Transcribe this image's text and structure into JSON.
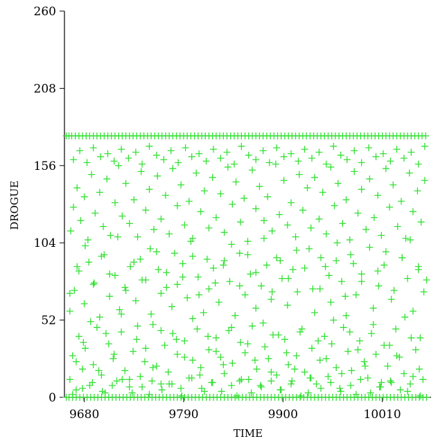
{
  "chart_data": {
    "type": "scatter",
    "title": "",
    "xlabel": "TIME",
    "ylabel": "DROGUE",
    "xlim": [
      9658,
      10064
    ],
    "ylim": [
      0,
      260
    ],
    "x_ticks": [
      9680,
      9790,
      9900,
      10010
    ],
    "x_tick_labels": [
      "9680",
      "9790",
      "9900",
      "10010"
    ],
    "y_ticks": [
      0,
      52,
      104,
      156,
      208,
      260
    ],
    "y_tick_labels": [
      "0",
      "52",
      "104",
      "156",
      208,
      "260"
    ],
    "marker": "plus",
    "grid": false,
    "colors": {
      "marker": "#33e033",
      "axis": "#000000"
    },
    "series": [
      {
        "x": [
          9664,
          9667,
          9671,
          9674,
          9678,
          9681,
          9686,
          9690,
          9694,
          9699,
          9703,
          9707,
          9712,
          9716,
          9721,
          9725,
          9730,
          9734,
          9738,
          9742,
          9747,
          9752,
          9756,
          9760,
          9765,
          9769,
          9773,
          9778,
          9783,
          9787,
          9791,
          9796,
          9800,
          9805,
          9809,
          9813,
          9818,
          9822,
          9826,
          9831,
          9835,
          9840,
          9844,
          9849,
          9853,
          9858,
          9862,
          9866,
          9871,
          9875,
          9880,
          9884,
          9889,
          9893,
          9897,
          9902,
          9906,
          9910,
          9915,
          9919,
          9924,
          9928,
          9932,
          9937,
          9941,
          9946,
          9950,
          9954,
          9959,
          9963,
          9967,
          9972,
          9976,
          9981,
          9985,
          9990,
          9994,
          9998,
          10003,
          10007,
          10012,
          10016,
          10020,
          10025,
          10029,
          10034,
          10038,
          10042,
          10047,
          10051,
          10055,
          9664,
          9669,
          9674,
          9680,
          9685,
          9691,
          9697,
          9702,
          9708,
          9714,
          9719,
          9725,
          9731,
          9737,
          9742,
          9748,
          9754,
          9760,
          9765,
          9771,
          9777,
          9783,
          9789,
          9794,
          9800,
          9806,
          9812,
          9818,
          9823,
          9829,
          9835,
          9841,
          9847,
          9852,
          9858,
          9864,
          9870,
          9876,
          9882,
          9887,
          9893,
          9899,
          9905,
          9911,
          9916,
          9929,
          9935,
          9941,
          9947,
          9953,
          9959,
          9965,
          9970,
          9975,
          9981,
          9987,
          10000,
          10006,
          10012,
          10020,
          10032,
          10038,
          10044,
          10050,
          10056,
          9665,
          9668,
          9672,
          9676,
          9680,
          9684,
          9688,
          9692,
          9697,
          9701,
          9705,
          9709,
          9714,
          9718,
          9722,
          9726,
          9730,
          9735,
          9739,
          9743,
          9748,
          9752,
          9757,
          9761,
          9765,
          9770,
          9774,
          9778,
          9783,
          9787,
          9791,
          9796,
          9800,
          9804,
          9809,
          9813,
          9818,
          9822,
          9826,
          9831,
          9835,
          9839,
          9844,
          9848,
          9853,
          9857,
          9861,
          9866,
          9870,
          9874,
          9879,
          9883,
          9888,
          9892,
          9896,
          9901,
          9905,
          9909,
          9914,
          9918,
          9922,
          9927,
          9931,
          9935,
          9940,
          9944,
          9948,
          9953,
          9957,
          9961,
          9966,
          9970,
          9974,
          9979,
          9983,
          9987,
          9992,
          9996,
          10001,
          10005,
          10009,
          10014,
          10018,
          10022,
          10027,
          10031,
          10036,
          10040,
          10044,
          10049,
          10053,
          10057,
          9668,
          9675,
          9683,
          9690,
          9698,
          9706,
          9713,
          9721,
          9729,
          9737,
          9744,
          9752,
          9760,
          9768,
          9776,
          9784,
          9792,
          9799,
          9807,
          9815,
          9823,
          9831,
          9838,
          9846,
          9854,
          9862,
          9870,
          9878,
          9885,
          9893,
          9901,
          9909,
          9917,
          9924,
          9932,
          9940,
          9948,
          9956,
          9964,
          9971,
          9979,
          9987,
          9995,
          10003,
          10011,
          10019,
          10026,
          10034,
          10042,
          10050,
          10057,
          9671,
          9679,
          9687,
          9696,
          9704,
          9713,
          9721,
          9730,
          9739,
          9748,
          9756,
          9765,
          9774,
          9782,
          9791,
          9800,
          9808,
          9817,
          9826,
          9834,
          9843,
          9852,
          9861,
          9869,
          9878,
          9887,
          9895,
          9904,
          9913,
          9921,
          9930,
          9939,
          9948,
          9956,
          9965,
          9974,
          9983,
          9991,
          10000,
          10009,
          10018,
          10026,
          10035,
          10044,
          10052,
          9664,
          9672,
          9681,
          9690,
          9699,
          9708,
          9717,
          9726,
          9735,
          9744,
          9753,
          9762,
          9771,
          9780,
          9789,
          9798,
          9807,
          9816,
          9825,
          9834,
          9843,
          9852,
          9861,
          9870,
          9879,
          9888,
          9897,
          9906,
          9915,
          9924,
          9933,
          9942,
          9951,
          9960,
          9969,
          9978,
          9987,
          9996,
          10005,
          10014,
          10023,
          10032,
          10041,
          10050,
          10059,
          9667,
          9678,
          9689,
          9700,
          9711,
          9722,
          9733,
          9744,
          9755,
          9766,
          9777,
          9788,
          9799,
          9810,
          9821,
          9832,
          9843,
          9854,
          9865,
          9876,
          9887,
          9898,
          9909,
          9920,
          9931,
          9942,
          9953,
          9964,
          9975,
          9986,
          9997,
          10008,
          10019,
          10030,
          10041,
          10052,
          9660,
          9663,
          9667,
          9671,
          9675,
          9679,
          9683,
          9687,
          9691,
          9695,
          9699,
          9703,
          9707,
          9711,
          9715,
          9719,
          9723,
          9727,
          9731,
          9735,
          9739,
          9743,
          9747,
          9751,
          9755,
          9759,
          9763,
          9767,
          9771,
          9775,
          9779,
          9783,
          9787,
          9791,
          9795,
          9799,
          9803,
          9807,
          9811,
          9815,
          9819,
          9823,
          9827,
          9831,
          9835,
          9839,
          9843,
          9847,
          9851,
          9855,
          9859,
          9863,
          9867,
          9871,
          9875,
          9879,
          9883,
          9887,
          9891,
          9895,
          9899,
          9903,
          9907,
          9911,
          9915,
          9919,
          9923,
          9927,
          9931,
          9935,
          9939,
          9943,
          9947,
          9951,
          9955,
          9959,
          9963,
          9967,
          9971,
          9975,
          9979,
          9983,
          9987,
          9991,
          9995,
          9999,
          10003,
          10007,
          10011,
          10015,
          10019,
          10023,
          10027,
          10031,
          10035,
          10039,
          10043,
          10047,
          10051,
          10055,
          10059,
          9660,
          9663,
          9666,
          9670,
          9674,
          9678,
          9682,
          9686,
          9690,
          9694,
          9698,
          9702,
          9706,
          9710,
          9714,
          9718,
          9722,
          9726,
          9730,
          9734,
          9738,
          9742,
          9746,
          9750,
          9754,
          9758,
          9762,
          9766,
          9770,
          9774,
          9778,
          9782,
          9786,
          9790,
          9794,
          9798,
          9802,
          9806,
          9810,
          9814,
          9818,
          9822,
          9826,
          9830,
          9834,
          9838,
          9842,
          9846,
          9850,
          9854,
          9858,
          9862,
          9866,
          9870,
          9874,
          9878,
          9882,
          9886,
          9890,
          9894,
          9898,
          9902,
          9906,
          9910,
          9914,
          9918,
          9922,
          9926,
          9930,
          9934,
          9938,
          9942,
          9946,
          9950,
          9954,
          9958,
          9962,
          9966,
          9970,
          9974,
          9978,
          9982,
          9986,
          9990,
          9994,
          9998,
          10002,
          10006,
          10010,
          10014,
          10018,
          10022,
          10026,
          10030,
          10034,
          10038,
          10042,
          10046,
          10050,
          10054,
          10058
        ],
        "y": [
          12,
          28,
          5,
          41,
          19,
          33,
          8,
          22,
          47,
          15,
          3,
          36,
          26,
          11,
          44,
          18,
          7,
          31,
          39,
          14,
          24,
          2,
          49,
          21,
          9,
          35,
          17,
          43,
          29,
          6,
          38,
          13,
          25,
          46,
          20,
          4,
          32,
          10,
          40,
          27,
          16,
          45,
          23,
          1,
          37,
          30,
          12,
          48,
          19,
          8,
          34,
          26,
          42,
          15,
          5,
          39,
          22,
          11,
          28,
          44,
          17,
          3,
          33,
          9,
          25,
          41,
          14,
          36,
          20,
          6,
          47,
          31,
          18,
          2,
          38,
          24,
          13,
          43,
          29,
          7,
          35,
          21,
          10,
          46,
          27,
          16,
          4,
          40,
          32,
          19,
          12,
          58,
          72,
          85,
          63,
          91,
          77,
          54,
          96,
          68,
          82,
          59,
          74,
          88,
          65,
          93,
          79,
          56,
          98,
          70,
          84,
          61,
          76,
          90,
          67,
          95,
          81,
          57,
          73,
          87,
          64,
          92,
          78,
          55,
          97,
          69,
          83,
          60,
          75,
          89,
          66,
          94,
          80,
          62,
          86,
          71,
          100,
          57,
          73,
          88,
          64,
          92,
          78,
          55,
          96,
          69,
          83,
          60,
          75,
          89,
          66,
          94,
          80,
          58,
          86,
          71,
          112,
          128,
          141,
          119,
          135,
          106,
          150,
          124,
          138,
          115,
          147,
          109,
          131,
          156,
          122,
          144,
          117,
          133,
          108,
          152,
          126,
          140,
          113,
          149,
          120,
          136,
          110,
          154,
          129,
          143,
          116,
          132,
          107,
          151,
          125,
          139,
          114,
          148,
          121,
          137,
          111,
          155,
          130,
          145,
          118,
          134,
          105,
          153,
          127,
          142,
          119,
          135,
          112,
          157,
          123,
          146,
          116,
          131,
          108,
          150,
          126,
          141,
          114,
          148,
          120,
          138,
          110,
          155,
          129,
          144,
          117,
          133,
          106,
          152,
          124,
          140,
          113,
          147,
          121,
          136,
          109,
          154,
          128,
          143,
          115,
          132,
          107,
          151,
          125,
          139,
          118,
          146,
          160,
          166,
          158,
          168,
          162,
          164,
          159,
          167,
          161,
          165,
          157,
          169,
          163,
          160,
          166,
          158,
          168,
          162,
          164,
          159,
          167,
          161,
          165,
          157,
          169,
          163,
          160,
          166,
          158,
          168,
          162,
          164,
          159,
          167,
          161,
          165,
          157,
          169,
          163,
          160,
          166,
          158,
          168,
          162,
          164,
          159,
          167,
          161,
          165,
          157,
          169,
          24,
          37,
          51,
          18,
          43,
          29,
          56,
          12,
          48,
          33,
          20,
          45,
          9,
          39,
          27,
          53,
          15,
          41,
          31,
          22,
          47,
          11,
          36,
          25,
          50,
          17,
          42,
          30,
          19,
          46,
          13,
          38,
          26,
          52,
          16,
          44,
          32,
          21,
          49,
          10,
          35,
          28,
          54,
          14,
          40,
          70,
          88,
          102,
          76,
          95,
          83,
          108,
          72,
          91,
          79,
          100,
          86,
          74,
          97,
          81,
          105,
          69,
          93,
          77,
          89,
          103,
          75,
          96,
          84,
          107,
          71,
          92,
          80,
          99,
          87,
          73,
          94,
          82,
          104,
          68,
          90,
          78,
          101,
          85,
          98,
          72,
          94,
          106,
          88,
          79,
          2,
          6,
          10,
          4,
          8,
          12,
          3,
          7,
          11,
          5,
          9,
          1,
          13,
          6,
          10,
          4,
          8,
          12,
          3,
          7,
          11,
          5,
          9,
          1,
          13,
          6,
          10,
          4,
          8,
          12,
          3,
          7,
          11,
          5,
          9,
          1,
          0,
          0,
          0,
          0,
          0,
          0,
          0,
          0,
          0,
          0,
          0,
          0,
          0,
          0,
          0,
          0,
          0,
          0,
          0,
          0,
          0,
          0,
          0,
          0,
          0,
          0,
          0,
          0,
          0,
          0,
          0,
          0,
          0,
          0,
          0,
          0,
          0,
          0,
          0,
          0,
          0,
          0,
          0,
          0,
          0,
          0,
          0,
          0,
          0,
          0,
          0,
          0,
          0,
          0,
          0,
          0,
          0,
          0,
          0,
          0,
          0,
          0,
          0,
          0,
          0,
          0,
          0,
          0,
          0,
          0,
          0,
          0,
          0,
          0,
          0,
          0,
          0,
          0,
          0,
          0,
          0,
          0,
          0,
          0,
          0,
          0,
          0,
          0,
          0,
          0,
          0,
          0,
          0,
          0,
          0,
          0,
          0,
          0,
          0,
          0,
          0,
          176,
          176,
          176,
          176,
          176,
          176,
          176,
          176,
          176,
          176,
          176,
          176,
          176,
          176,
          176,
          176,
          176,
          176,
          176,
          176,
          176,
          176,
          176,
          176,
          176,
          176,
          176,
          176,
          176,
          176,
          176,
          176,
          176,
          176,
          176,
          176,
          176,
          176,
          176,
          176,
          176,
          176,
          176,
          176,
          176,
          176,
          176,
          176,
          176,
          176,
          176,
          176,
          176,
          176,
          176,
          176,
          176,
          176,
          176,
          176,
          176,
          176,
          176,
          176,
          176,
          176,
          176,
          176,
          176,
          176,
          176,
          176,
          176,
          176,
          176,
          176,
          176,
          176,
          176,
          176,
          176,
          176,
          176,
          176,
          176,
          176,
          176,
          176,
          176,
          176,
          176,
          176,
          176,
          176,
          176,
          176,
          176,
          176,
          176,
          176,
          176
        ]
      }
    ]
  }
}
